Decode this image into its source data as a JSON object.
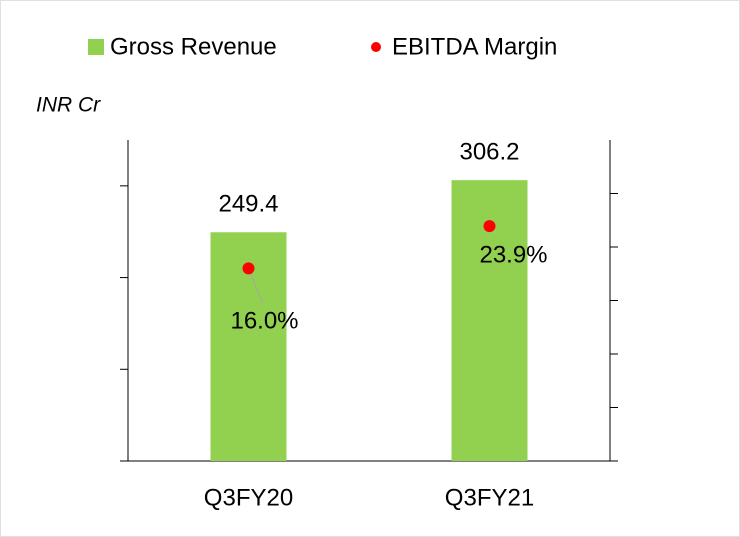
{
  "chart_data": {
    "type": "bar",
    "annotation": "INR Cr",
    "categories": [
      "Q3FY20",
      "Q3FY21"
    ],
    "series": [
      {
        "name": "Gross Revenue",
        "type": "bar",
        "color": "#92d050",
        "values": [
          249.4,
          306.2
        ]
      },
      {
        "name": "EBITDA Margin",
        "type": "scatter",
        "color": "#ff0000",
        "axis": "y2",
        "values": [
          16.0,
          23.9
        ],
        "value_labels": [
          "16.0%",
          "23.9%"
        ]
      }
    ],
    "ylim": [
      0,
      350
    ],
    "yticks": [
      0,
      100,
      200,
      300
    ],
    "y2lim": [
      -20,
      40
    ],
    "y2ticks": [
      -20,
      -10,
      0,
      10,
      20,
      30
    ],
    "legend": "top"
  }
}
